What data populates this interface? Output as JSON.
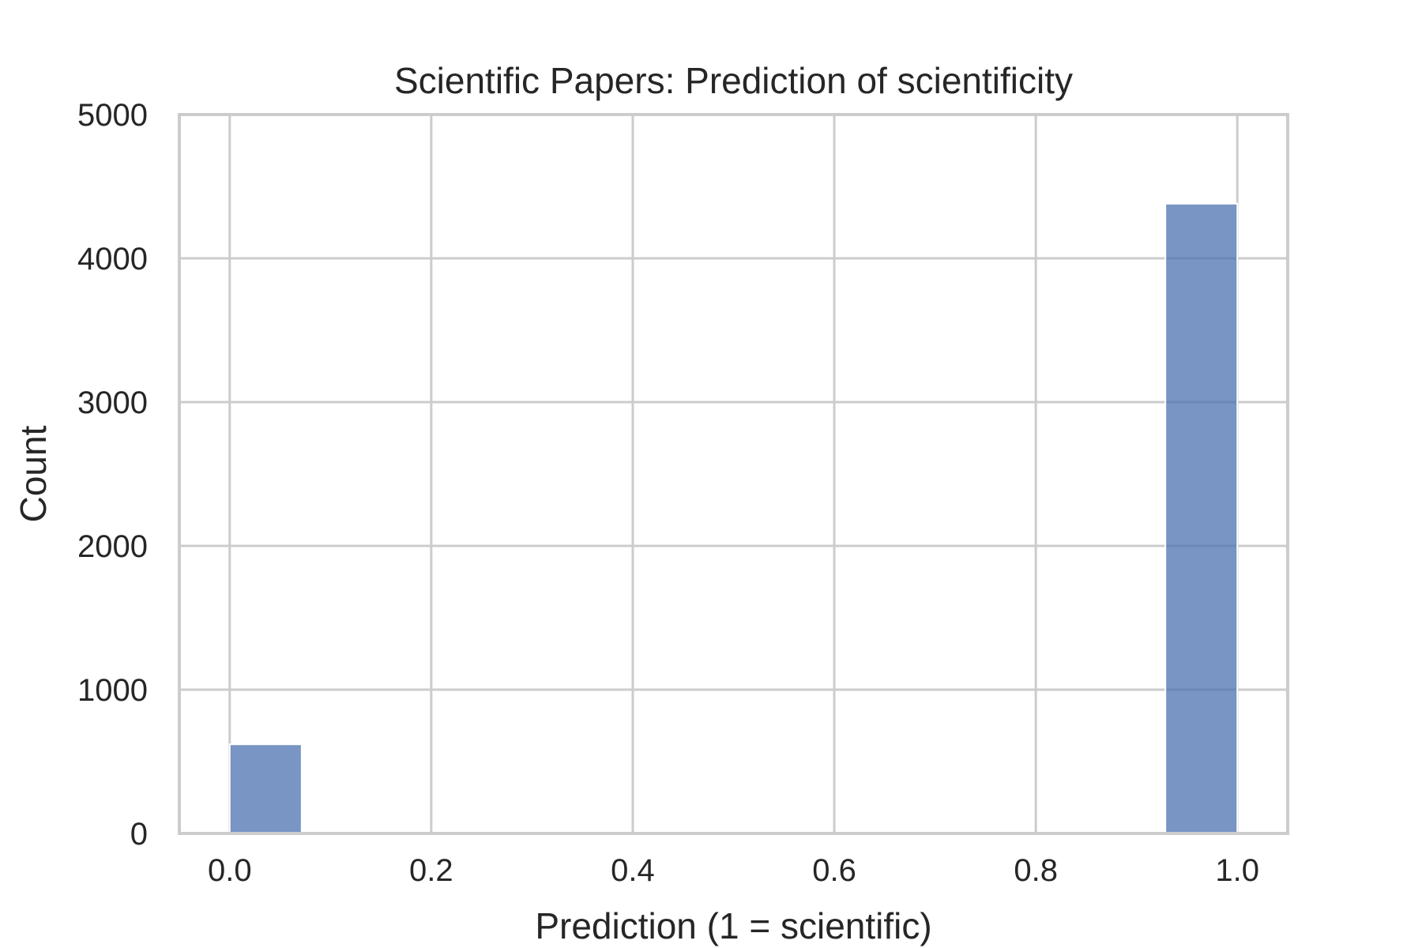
{
  "chart_data": {
    "type": "bar",
    "title": "Scientific Papers: Prediction of scientificity",
    "xlabel": "Prediction (1 = scientific)",
    "ylabel": "Count",
    "xlim": [
      -0.05,
      1.05
    ],
    "ylim": [
      0,
      5000
    ],
    "x_ticks": [
      "0.0",
      "0.2",
      "0.4",
      "0.6",
      "0.8",
      "1.0"
    ],
    "y_ticks": [
      "0",
      "1000",
      "2000",
      "3000",
      "4000",
      "5000"
    ],
    "bins": [
      {
        "x_start": 0.0,
        "x_end": 0.0714,
        "value": 620
      },
      {
        "x_start": 0.9286,
        "x_end": 1.0,
        "value": 4380
      }
    ],
    "bar_color": "#4c72b0",
    "grid": true
  }
}
